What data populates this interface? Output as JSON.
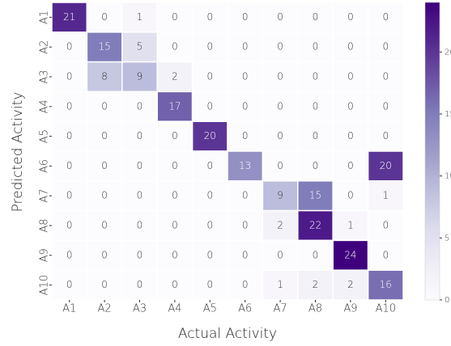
{
  "chart_data": {
    "type": "heatmap",
    "x_label": "Actual Activity",
    "y_label": "Predicted Activity",
    "x_categories": [
      "A1",
      "A2",
      "A3",
      "A4",
      "A5",
      "A6",
      "A7",
      "A8",
      "A9",
      "A10"
    ],
    "y_categories": [
      "A1",
      "A2",
      "A3",
      "A4",
      "A5",
      "A6",
      "A7",
      "A8",
      "A9",
      "A10"
    ],
    "values": [
      [
        21,
        0,
        1,
        0,
        0,
        0,
        0,
        0,
        0,
        0
      ],
      [
        0,
        15,
        5,
        0,
        0,
        0,
        0,
        0,
        0,
        0
      ],
      [
        0,
        8,
        9,
        2,
        0,
        0,
        0,
        0,
        0,
        0
      ],
      [
        0,
        0,
        0,
        17,
        0,
        0,
        0,
        0,
        0,
        0
      ],
      [
        0,
        0,
        0,
        0,
        20,
        0,
        0,
        0,
        0,
        0
      ],
      [
        0,
        0,
        0,
        0,
        0,
        13,
        0,
        0,
        0,
        20
      ],
      [
        0,
        0,
        0,
        0,
        0,
        0,
        9,
        15,
        0,
        1
      ],
      [
        0,
        0,
        0,
        0,
        0,
        0,
        2,
        22,
        1,
        0
      ],
      [
        0,
        0,
        0,
        0,
        0,
        0,
        0,
        0,
        24,
        0
      ],
      [
        0,
        0,
        0,
        0,
        0,
        0,
        1,
        2,
        2,
        16
      ]
    ],
    "zlim": [
      0,
      24
    ],
    "colorbar_ticks": [
      0,
      5,
      10,
      15,
      20
    ],
    "colormap": [
      "#fcfbfd",
      "#efedf5",
      "#dadaeb",
      "#bcbddc",
      "#9e9ac8",
      "#807dba",
      "#6a51a3",
      "#54278f",
      "#3f007d"
    ]
  }
}
